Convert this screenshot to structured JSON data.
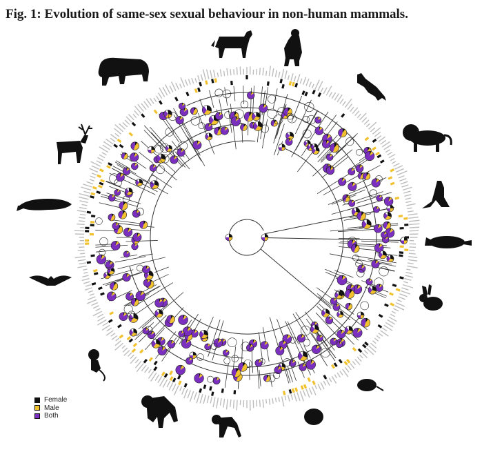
{
  "figure": {
    "title": "Fig. 1: Evolution of same-sex sexual behaviour in non-human mammals."
  },
  "legend": [
    {
      "label": "Female",
      "color": "#111111"
    },
    {
      "label": "Male",
      "color": "#f2c12e"
    },
    {
      "label": "Both",
      "color": "#7b2fbe"
    }
  ],
  "colors": {
    "female": "#111111",
    "male": "#f2c12e",
    "both": "#7b2fbe",
    "absent": "#ffffff",
    "branch": "#333333",
    "tip_tick": "#bdbdbd",
    "silhouette": "#111111"
  },
  "silhouettes": [
    "zebra-icon",
    "bear-icon",
    "wolf-icon",
    "lion-icon",
    "kangaroo-icon",
    "platypus-icon",
    "hare-icon",
    "rodent-icon",
    "hamster-icon",
    "macaque-icon",
    "gorilla-icon",
    "marmoset-icon",
    "bat-icon",
    "whale-icon",
    "deer-icon",
    "bison-icon"
  ]
}
